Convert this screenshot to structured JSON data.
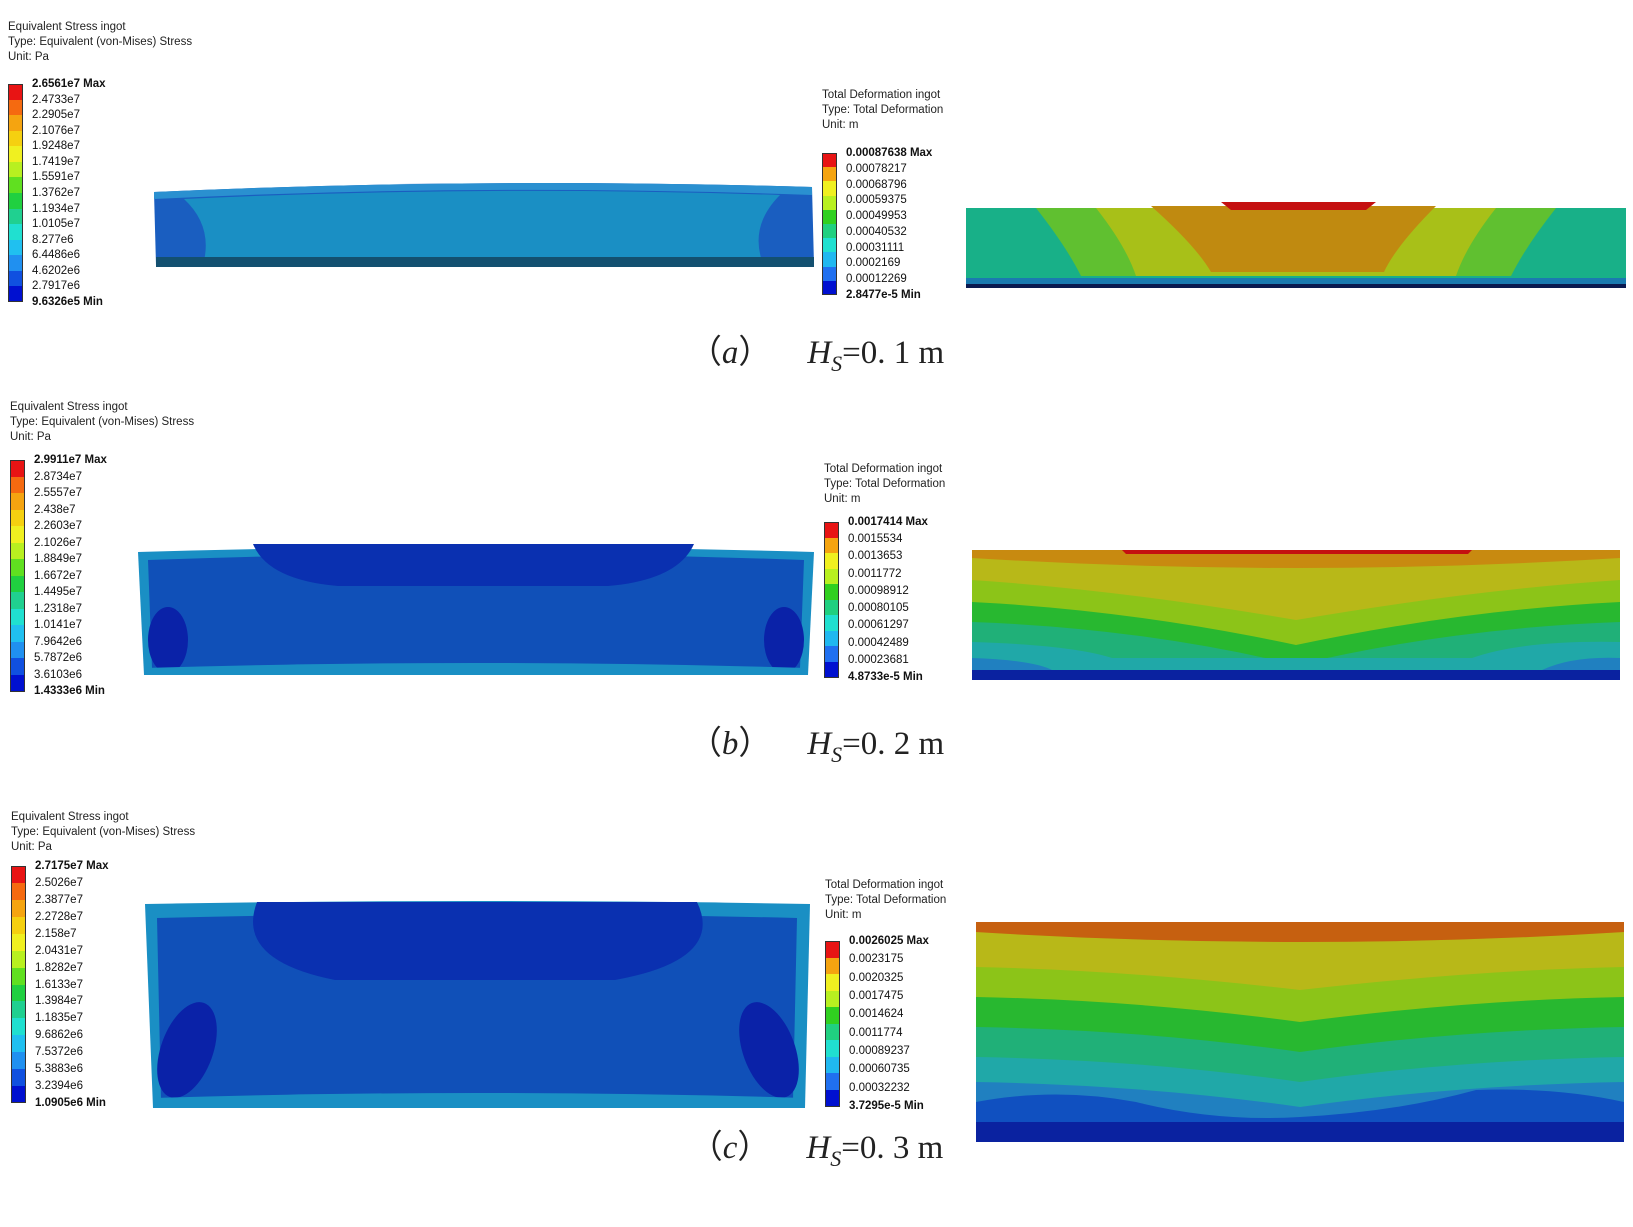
{
  "colors": {
    "stress_scale": [
      "#e81414",
      "#f56a10",
      "#f5a410",
      "#f5d010",
      "#f0f020",
      "#b8f020",
      "#60e020",
      "#20d040",
      "#20d090",
      "#20e0d0",
      "#20c0f0",
      "#2090f0",
      "#1050e0",
      "#0010d0"
    ],
    "deformation_scale": [
      "#e81414",
      "#f5a410",
      "#f0f020",
      "#b8f020",
      "#30d020",
      "#20d080",
      "#20e0d0",
      "#20b8f0",
      "#2070f0",
      "#0010d0"
    ]
  },
  "panels": [
    {
      "id": "a",
      "caption": {
        "letter": "a",
        "open": "（",
        "close": "）",
        "h": "H",
        "sub": "S",
        "value": "=0. 1 m"
      },
      "stress": {
        "title": "Equivalent Stress ingot",
        "type": "Type: Equivalent (von-Mises) Stress",
        "unit": "Unit: Pa",
        "labels": [
          "2.6561e7 Max",
          "2.4733e7",
          "2.2905e7",
          "2.1076e7",
          "1.9248e7",
          "1.7419e7",
          "1.5591e7",
          "1.3762e7",
          "1.1934e7",
          "1.0105e7",
          "8.277e6",
          "6.4486e6",
          "4.6202e6",
          "2.7917e6",
          "9.6326e5 Min"
        ]
      },
      "deformation": {
        "title": "Total Deformation ingot",
        "type": "Type: Total Deformation",
        "unit": "Unit: m",
        "labels": [
          "0.00087638 Max",
          "0.00078217",
          "0.00068796",
          "0.00059375",
          "0.00049953",
          "0.00040532",
          "0.00031111",
          "0.0002169",
          "0.00012269",
          "2.8477e-5 Min"
        ]
      }
    },
    {
      "id": "b",
      "caption": {
        "letter": "b",
        "open": "（",
        "close": "）",
        "h": "H",
        "sub": "S",
        "value": "=0. 2 m"
      },
      "stress": {
        "title": "Equivalent Stress ingot",
        "type": "Type: Equivalent (von-Mises) Stress",
        "unit": "Unit: Pa",
        "labels": [
          "2.9911e7 Max",
          "2.8734e7",
          "2.5557e7",
          "2.438e7",
          "2.2603e7",
          "2.1026e7",
          "1.8849e7",
          "1.6672e7",
          "1.4495e7",
          "1.2318e7",
          "1.0141e7",
          "7.9642e6",
          "5.7872e6",
          "3.6103e6",
          "1.4333e6 Min"
        ]
      },
      "deformation": {
        "title": "Total Deformation ingot",
        "type": "Type: Total Deformation",
        "unit": "Unit: m",
        "labels": [
          "0.0017414 Max",
          "0.0015534",
          "0.0013653",
          "0.0011772",
          "0.00098912",
          "0.00080105",
          "0.00061297",
          "0.00042489",
          "0.00023681",
          "4.8733e-5 Min"
        ]
      }
    },
    {
      "id": "c",
      "caption": {
        "letter": "c",
        "open": "（",
        "close": "）",
        "h": "H",
        "sub": "S",
        "value": "=0. 3 m"
      },
      "stress": {
        "title": "Equivalent Stress ingot",
        "type": "Type: Equivalent (von-Mises) Stress",
        "unit": "Unit: Pa",
        "labels": [
          "2.7175e7 Max",
          "2.5026e7",
          "2.3877e7",
          "2.2728e7",
          "2.158e7",
          "2.0431e7",
          "1.8282e7",
          "1.6133e7",
          "1.3984e7",
          "1.1835e7",
          "9.6862e6",
          "7.5372e6",
          "5.3883e6",
          "3.2394e6",
          "1.0905e6 Min"
        ]
      },
      "deformation": {
        "title": "Total Deformation ingot",
        "type": "Type: Total Deformation",
        "unit": "Unit: m",
        "labels": [
          "0.0026025 Max",
          "0.0023175",
          "0.0020325",
          "0.0017475",
          "0.0014624",
          "0.0011774",
          "0.00089237",
          "0.00060735",
          "0.00032232",
          "3.7295e-5 Min"
        ]
      }
    }
  ]
}
